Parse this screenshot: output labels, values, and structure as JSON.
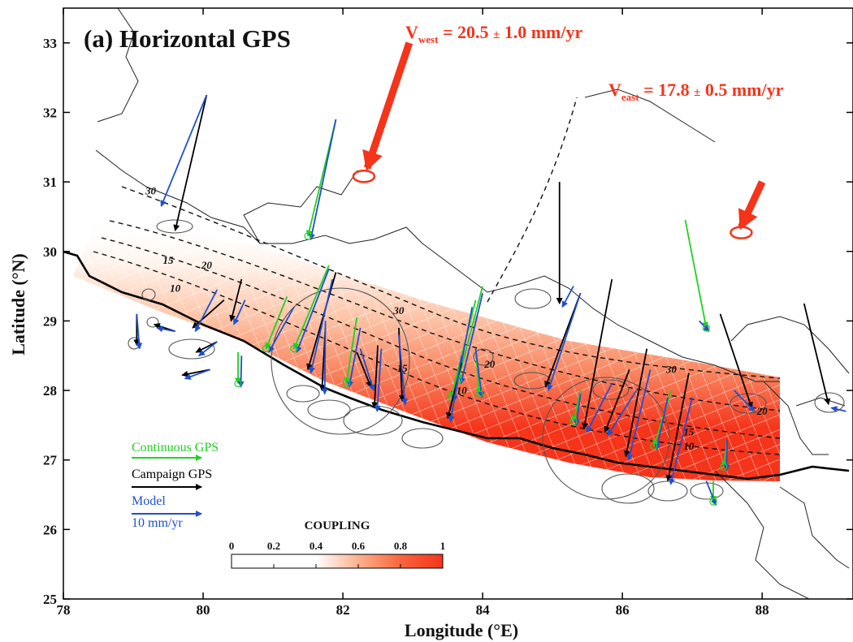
{
  "panel_title": "(a) Horizontal GPS",
  "x_axis": {
    "label": "Longitude (°E)",
    "range": [
      78,
      89.3
    ],
    "ticks": [
      {
        "value": 78,
        "label": "78"
      },
      {
        "value": 80,
        "label": "80"
      },
      {
        "value": 82,
        "label": "82"
      },
      {
        "value": 84,
        "label": "84"
      },
      {
        "value": 86,
        "label": "86"
      },
      {
        "value": 88,
        "label": "88"
      }
    ]
  },
  "y_axis": {
    "label": "Latitude (°N)",
    "range": [
      25,
      33.5
    ],
    "ticks": [
      {
        "value": 25,
        "label": "25"
      },
      {
        "value": 26,
        "label": "26"
      },
      {
        "value": 27,
        "label": "27"
      },
      {
        "value": 28,
        "label": "28"
      },
      {
        "value": 29,
        "label": "29"
      },
      {
        "value": 30,
        "label": "30"
      },
      {
        "value": 31,
        "label": "31"
      },
      {
        "value": 32,
        "label": "32"
      },
      {
        "value": 33,
        "label": "33"
      }
    ]
  },
  "v_west": {
    "symbol": "V",
    "subscript": "west",
    "value": "= 20.5",
    "pm": "±",
    "error": "1.0 mm/yr"
  },
  "v_east": {
    "symbol": "V",
    "subscript": "east",
    "value": "= 17.8",
    "pm": "±",
    "error": "0.5 mm/yr"
  },
  "legend": {
    "continuous": "Continuous GPS",
    "campaign": "Campaign GPS",
    "model": "Model",
    "scale": "10 mm/yr"
  },
  "colorbar": {
    "title": "COUPLING",
    "ticks": [
      {
        "value": 0,
        "label": "0"
      },
      {
        "value": 0.2,
        "label": "0.2"
      },
      {
        "value": 0.4,
        "label": "0.4"
      },
      {
        "value": 0.6,
        "label": "0.6"
      },
      {
        "value": 0.8,
        "label": "0.8"
      },
      {
        "value": 1,
        "label": "1"
      }
    ]
  },
  "contour_labels": [
    {
      "text": "30",
      "lon": 79.25,
      "lat": 30.82
    },
    {
      "text": "15",
      "lon": 79.5,
      "lat": 29.82
    },
    {
      "text": "10",
      "lon": 79.6,
      "lat": 29.42
    },
    {
      "text": "20",
      "lon": 80.05,
      "lat": 29.75
    },
    {
      "text": "30",
      "lon": 82.8,
      "lat": 29.1
    },
    {
      "text": "15",
      "lon": 82.85,
      "lat": 28.27
    },
    {
      "text": "10",
      "lon": 83.7,
      "lat": 27.95
    },
    {
      "text": "20",
      "lon": 84.1,
      "lat": 28.33
    },
    {
      "text": "30",
      "lon": 86.7,
      "lat": 28.25
    },
    {
      "text": "20",
      "lon": 88,
      "lat": 27.65
    },
    {
      "text": "15",
      "lon": 86.95,
      "lat": 27.35
    },
    {
      "text": "10",
      "lon": 86.95,
      "lat": 27.15
    }
  ],
  "colors": {
    "continuous": "#1fd21f",
    "campaign": "#000000",
    "model": "#1f4fd0",
    "plate": "#f5341a",
    "coupling_high": "#f5341a",
    "ellipse": "#555555"
  },
  "plate_vectors": [
    {
      "name": "v_west",
      "from": [
        82.95,
        33.0
      ],
      "to": [
        82.35,
        31.2
      ],
      "ellipse": [
        82.3,
        31.08
      ]
    },
    {
      "name": "v_east",
      "from": [
        88.0,
        31.0
      ],
      "to": [
        87.7,
        30.35
      ],
      "ellipse": [
        87.7,
        30.27
      ]
    }
  ],
  "gps_stations": [
    {
      "lon": 79.6,
      "lat": 30.3,
      "obs": [
        80.05,
        32.25
      ],
      "model": [
        80.05,
        32.25
      ],
      "model_tip": [
        79.4,
        30.65
      ],
      "type": "campaign"
    },
    {
      "lon": 81.5,
      "lat": 30.22,
      "obs": [
        81.9,
        31.9
      ],
      "model": [
        81.9,
        31.9
      ],
      "type": "continuous"
    },
    {
      "lon": 85.1,
      "lat": 29.25,
      "obs": [
        85.1,
        31.0
      ],
      "model": [
        85.3,
        29.5
      ],
      "type": "campaign"
    },
    {
      "lon": 84.9,
      "lat": 28.05,
      "obs": [
        85.4,
        29.4
      ],
      "model": [
        85.4,
        29.4
      ],
      "type": "campaign"
    },
    {
      "lon": 87.2,
      "lat": 28.9,
      "obs": [
        86.9,
        30.45
      ],
      "model": [
        87.1,
        29.0
      ],
      "type": "continuous"
    },
    {
      "lon": 87.85,
      "lat": 27.75,
      "obs": [
        87.4,
        29.1
      ],
      "model": [
        87.6,
        28.0
      ],
      "type": "campaign"
    },
    {
      "lon": 88.95,
      "lat": 27.8,
      "obs": [
        88.6,
        29.25
      ],
      "model": [
        89.2,
        27.7
      ],
      "type": "campaign"
    },
    {
      "lon": 79.05,
      "lat": 28.65,
      "obs": [
        79.05,
        29.1
      ],
      "model": [
        79.05,
        29.1
      ],
      "type": "campaign"
    },
    {
      "lon": 79.3,
      "lat": 28.95,
      "obs": [
        79.6,
        28.85
      ],
      "model": [
        79.6,
        28.85
      ],
      "type": "campaign"
    },
    {
      "lon": 79.7,
      "lat": 28.22,
      "obs": [
        80.1,
        28.3
      ],
      "model": [
        80.1,
        28.3
      ],
      "type": "campaign"
    },
    {
      "lon": 79.9,
      "lat": 28.55,
      "obs": [
        80.2,
        28.7
      ],
      "model": [
        80.2,
        28.7
      ],
      "type": "campaign"
    },
    {
      "lon": 79.85,
      "lat": 28.9,
      "obs": [
        80.3,
        29.3
      ],
      "model": [
        80.2,
        29.45
      ],
      "type": "campaign"
    },
    {
      "lon": 80.4,
      "lat": 29.0,
      "obs": [
        80.55,
        29.6
      ],
      "model": [
        80.6,
        29.3
      ],
      "type": "campaign"
    },
    {
      "lon": 80.5,
      "lat": 28.1,
      "obs": [
        80.5,
        28.55
      ],
      "model": [
        80.55,
        28.5
      ],
      "type": "continuous"
    },
    {
      "lon": 80.9,
      "lat": 28.6,
      "obs": [
        81.2,
        29.35
      ],
      "model": [
        81.3,
        29.2
      ],
      "type": "continuous"
    },
    {
      "lon": 81.3,
      "lat": 28.6,
      "obs": [
        81.8,
        29.8
      ],
      "model": [
        81.8,
        29.75
      ],
      "type": "continuous"
    },
    {
      "lon": 81.5,
      "lat": 28.3,
      "obs": [
        81.9,
        29.7
      ],
      "model": [
        81.85,
        29.6
      ],
      "type": "campaign"
    },
    {
      "lon": 81.7,
      "lat": 28.0,
      "obs": [
        81.75,
        28.9
      ],
      "model": [
        81.75,
        29.0
      ],
      "type": "campaign"
    },
    {
      "lon": 82.05,
      "lat": 28.1,
      "obs": [
        82.2,
        29.05
      ],
      "model": [
        82.25,
        28.9
      ],
      "type": "continuous"
    },
    {
      "lon": 82.4,
      "lat": 28.05,
      "obs": [
        82.2,
        28.55
      ],
      "model": [
        82.25,
        28.6
      ],
      "type": "campaign"
    },
    {
      "lon": 82.45,
      "lat": 27.75,
      "obs": [
        82.5,
        28.65
      ],
      "model": [
        82.55,
        28.6
      ],
      "type": "campaign"
    },
    {
      "lon": 82.85,
      "lat": 27.85,
      "obs": [
        82.8,
        28.9
      ],
      "model": [
        82.8,
        28.8
      ],
      "type": "campaign"
    },
    {
      "lon": 83.55,
      "lat": 27.9,
      "obs": [
        83.9,
        29.3
      ],
      "model": [
        83.85,
        29.2
      ],
      "type": "continuous"
    },
    {
      "lon": 83.65,
      "lat": 28.15,
      "obs": [
        84.0,
        29.5
      ],
      "model": [
        84.0,
        29.4
      ],
      "type": "continuous"
    },
    {
      "lon": 83.5,
      "lat": 27.6,
      "obs": [
        83.7,
        28.4
      ],
      "model": [
        83.7,
        28.5
      ],
      "type": "campaign"
    },
    {
      "lon": 83.95,
      "lat": 27.95,
      "obs": [
        83.9,
        28.6
      ],
      "model": [
        83.9,
        28.6
      ],
      "type": "continuous"
    },
    {
      "lon": 85.45,
      "lat": 27.45,
      "obs": [
        85.85,
        29.6
      ],
      "model": [
        85.85,
        28.1
      ],
      "type": "campaign"
    },
    {
      "lon": 85.75,
      "lat": 27.4,
      "obs": [
        86.1,
        28.3
      ],
      "model": [
        86.2,
        28.0
      ],
      "type": "campaign"
    },
    {
      "lon": 85.3,
      "lat": 27.55,
      "obs": [
        85.4,
        28.0
      ],
      "model": [
        85.4,
        27.95
      ],
      "type": "continuous"
    },
    {
      "lon": 86.05,
      "lat": 27.05,
      "obs": [
        86.35,
        28.6
      ],
      "model": [
        86.4,
        28.3
      ],
      "type": "campaign"
    },
    {
      "lon": 86.45,
      "lat": 27.2,
      "obs": [
        86.7,
        28.0
      ],
      "model": [
        86.65,
        27.9
      ],
      "type": "continuous"
    },
    {
      "lon": 86.65,
      "lat": 26.7,
      "obs": [
        86.95,
        28.25
      ],
      "model": [
        87.0,
        27.9
      ],
      "type": "campaign"
    },
    {
      "lon": 87.45,
      "lat": 26.9,
      "obs": [
        87.5,
        27.3
      ],
      "model": [
        87.5,
        27.3
      ],
      "type": "continuous"
    },
    {
      "lon": 87.3,
      "lat": 26.4,
      "obs": [
        87.3,
        26.7
      ],
      "model": [
        87.2,
        26.7
      ],
      "type": "continuous"
    }
  ]
}
